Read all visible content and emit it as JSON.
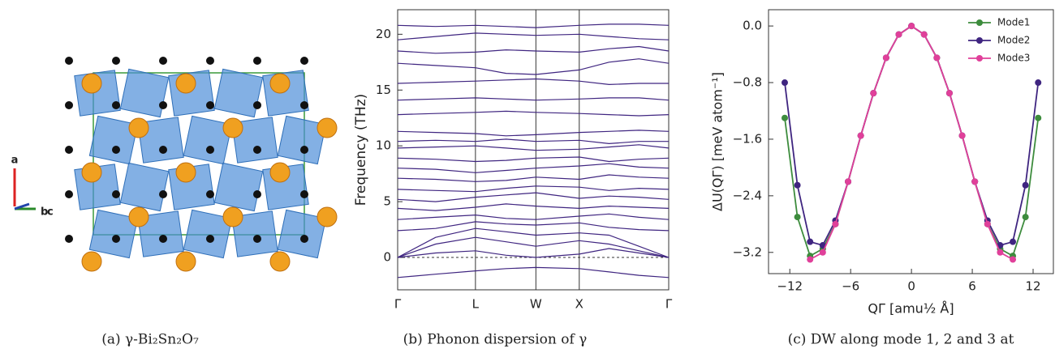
{
  "panel_a": {
    "axis_labels": [
      "a",
      "b",
      "c"
    ]
  },
  "captions": [
    "(a) γ-Bi₂Sn₂O₇",
    "(b) Phonon dispersion of γ",
    "(c) DW along mode 1, 2 and 3 at"
  ],
  "chart_data": [
    {
      "type": "bands",
      "ylabel": "Frequency (THz)",
      "color": "#3f2580",
      "categories": [
        "Γ",
        null,
        "L",
        null,
        "W",
        "X",
        null,
        null,
        "Γ"
      ],
      "ylim": [
        -2.9,
        22.2
      ],
      "yticks": [
        0,
        5,
        10,
        15,
        20
      ],
      "bands": [
        [
          -1.8,
          -1.5,
          -1.2,
          -1.0,
          -0.9,
          -1.0,
          -1.3,
          -1.6,
          -1.8
        ],
        [
          0,
          0.4,
          0.6,
          0.2,
          0,
          0.3,
          0.8,
          0.4,
          0
        ],
        [
          0,
          1.2,
          1.8,
          1.4,
          1.0,
          1.5,
          1.2,
          0.6,
          0
        ],
        [
          0,
          1.8,
          2.6,
          2.3,
          2.0,
          2.2,
          2.0,
          1.0,
          0
        ],
        [
          2.4,
          2.6,
          3.2,
          3.0,
          2.9,
          3.1,
          2.7,
          2.5,
          2.4
        ],
        [
          3.4,
          3.6,
          3.8,
          3.5,
          3.4,
          3.7,
          3.9,
          3.6,
          3.4
        ],
        [
          4.4,
          4.2,
          4.5,
          4.8,
          4.6,
          4.4,
          4.6,
          4.5,
          4.4
        ],
        [
          5.2,
          5.0,
          5.4,
          5.6,
          5.8,
          5.3,
          5.5,
          5.4,
          5.2
        ],
        [
          6.1,
          6.0,
          5.9,
          6.2,
          6.4,
          6.3,
          6.0,
          6.2,
          6.1
        ],
        [
          7.1,
          7.0,
          6.8,
          6.9,
          7.2,
          7.0,
          7.4,
          7.2,
          7.1
        ],
        [
          8.0,
          7.9,
          7.6,
          7.8,
          8.0,
          8.2,
          8.4,
          8.1,
          8.0
        ],
        [
          8.9,
          8.8,
          8.6,
          8.7,
          8.9,
          9.0,
          8.6,
          8.8,
          8.9
        ],
        [
          9.8,
          9.9,
          10.0,
          9.8,
          9.6,
          9.7,
          9.9,
          10.1,
          9.8
        ],
        [
          10.4,
          10.5,
          10.4,
          10.6,
          10.4,
          10.5,
          10.2,
          10.4,
          10.4
        ],
        [
          11.3,
          11.2,
          11.1,
          10.9,
          11.0,
          11.2,
          11.3,
          11.4,
          11.3
        ],
        [
          12.8,
          12.9,
          13.0,
          13.1,
          13.0,
          12.9,
          12.8,
          12.7,
          12.8
        ],
        [
          14.1,
          14.2,
          14.3,
          14.2,
          14.1,
          14.2,
          14.3,
          14.3,
          14.1
        ],
        [
          15.6,
          15.7,
          15.8,
          15.9,
          16.0,
          15.8,
          15.5,
          15.6,
          15.6
        ],
        [
          17.4,
          17.2,
          17.0,
          16.5,
          16.4,
          16.8,
          17.5,
          17.8,
          17.4
        ],
        [
          18.5,
          18.3,
          18.4,
          18.6,
          18.5,
          18.4,
          18.7,
          18.9,
          18.5
        ],
        [
          19.5,
          19.8,
          20.1,
          20.0,
          19.9,
          20.0,
          19.8,
          19.6,
          19.5
        ],
        [
          20.8,
          20.7,
          20.8,
          20.7,
          20.6,
          20.8,
          20.9,
          20.9,
          20.8
        ]
      ]
    },
    {
      "type": "line",
      "xlabel": "QΓ [amu½ Å]",
      "ylabel": "ΔU(QΓ) [meV atom⁻¹]",
      "legend": "upper right",
      "x": [
        -12.5,
        -11.25,
        -10,
        -8.75,
        -7.5,
        -6.25,
        -5,
        -3.75,
        -2.5,
        -1.25,
        0,
        1.25,
        2.5,
        3.75,
        5,
        6.25,
        7.5,
        8.75,
        10,
        11.25,
        12.5
      ],
      "xlim": [
        -14.1,
        14
      ],
      "ylim": [
        -3.5,
        0.23
      ],
      "xticks": [
        {
          "value": -12,
          "label": "−12"
        },
        {
          "value": -6,
          "label": "−6"
        },
        0,
        6,
        12
      ],
      "yticks": [
        {
          "value": 0,
          "label": "0.0"
        },
        {
          "value": -0.8,
          "label": "−0.8"
        },
        {
          "value": -1.6,
          "label": "−1.6"
        },
        {
          "value": -2.4,
          "label": "−2.4"
        },
        {
          "value": -3.2,
          "label": "−3.2"
        }
      ],
      "series": [
        {
          "name": "Mode1",
          "color": "#3d8c3d",
          "values": [
            -1.3,
            -2.7,
            -3.25,
            -3.15,
            -2.8,
            -2.2,
            -1.55,
            -0.95,
            -0.45,
            -0.12,
            0,
            -0.12,
            -0.45,
            -0.95,
            -1.55,
            -2.2,
            -2.8,
            -3.15,
            -3.25,
            -2.7,
            -1.3
          ]
        },
        {
          "name": "Mode2",
          "color": "#3f2580",
          "values": [
            -0.8,
            -2.25,
            -3.05,
            -3.1,
            -2.75,
            -2.2,
            -1.55,
            -0.95,
            -0.45,
            -0.12,
            0,
            -0.12,
            -0.45,
            -0.95,
            -1.55,
            -2.2,
            -2.75,
            -3.1,
            -3.05,
            -2.25,
            -0.8
          ]
        },
        {
          "name": "Mode3",
          "color": "#e0409a",
          "values": [
            null,
            null,
            -3.3,
            -3.2,
            -2.8,
            -2.2,
            -1.55,
            -0.95,
            -0.45,
            -0.12,
            0,
            -0.12,
            -0.45,
            -0.95,
            -1.55,
            -2.2,
            -2.8,
            -3.2,
            -3.3,
            null,
            null
          ]
        }
      ]
    }
  ]
}
